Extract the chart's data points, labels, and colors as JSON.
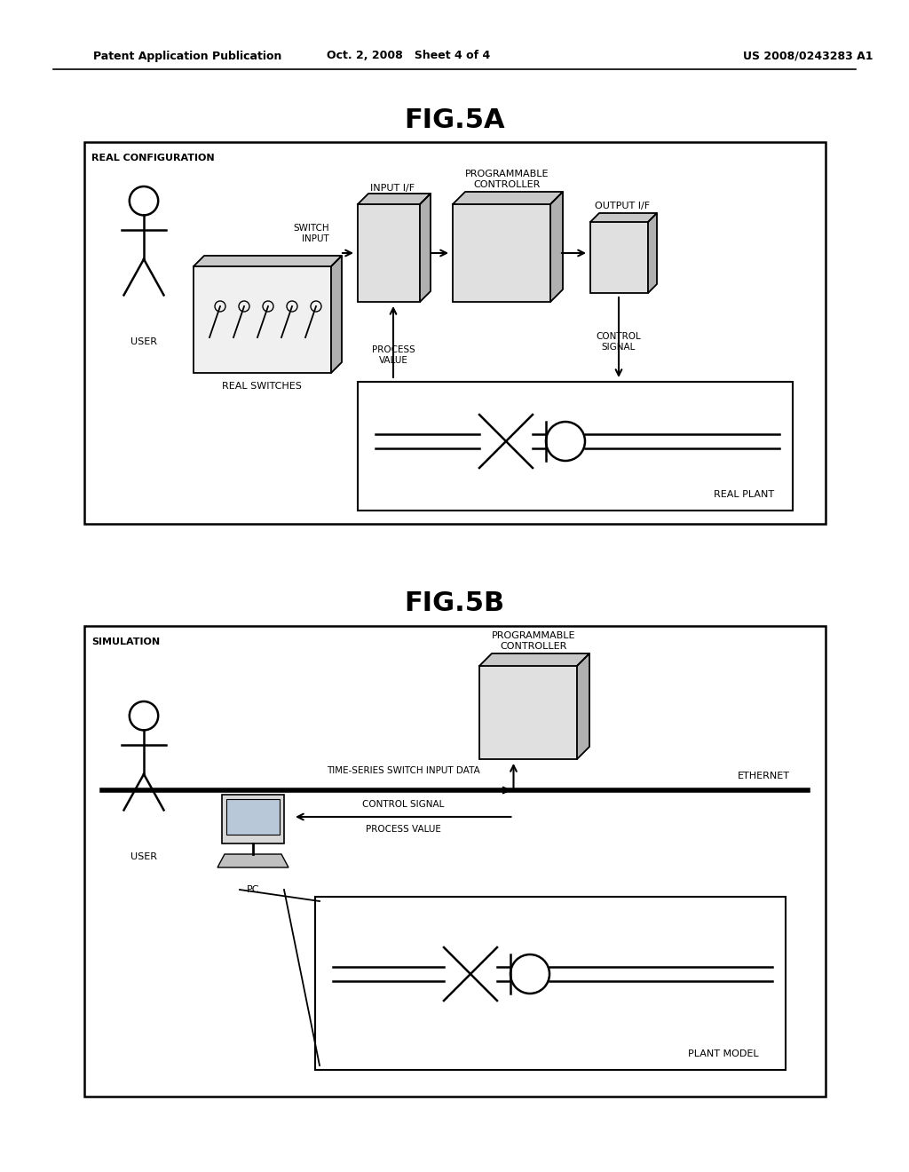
{
  "bg_color": "#ffffff",
  "header_left": "Patent Application Publication",
  "header_mid": "Oct. 2, 2008   Sheet 4 of 4",
  "header_right": "US 2008/0243283 A1",
  "fig5a_title": "FIG.5A",
  "fig5b_title": "FIG.5B",
  "fig5a_label": "REAL CONFIGURATION",
  "fig5b_label": "SIMULATION",
  "real_switches_label": "REAL SWITCHES",
  "real_plant_label": "REAL PLANT",
  "input_if_label": "INPUT I/F",
  "prog_ctrl_label": "PROGRAMMABLE\nCONTROLLER",
  "output_if_label": "OUTPUT I/F",
  "switch_input_label": "SWITCH\nINPUT",
  "process_value_label": "PROCESS\nVALUE",
  "control_signal_label": "CONTROL\nSIGNAL",
  "user_label": "USER",
  "ethernet_label": "ETHERNET",
  "time_series_label": "TIME-SERIES SWITCH INPUT DATA",
  "control_signal_label2": "CONTROL SIGNAL",
  "process_value_label2": "PROCESS VALUE",
  "user_label2": "USER",
  "pc_label": "PC",
  "plant_model_label": "PLANT MODEL",
  "prog_ctrl_label2": "PROGRAMMABLE\nCONTROLLER"
}
